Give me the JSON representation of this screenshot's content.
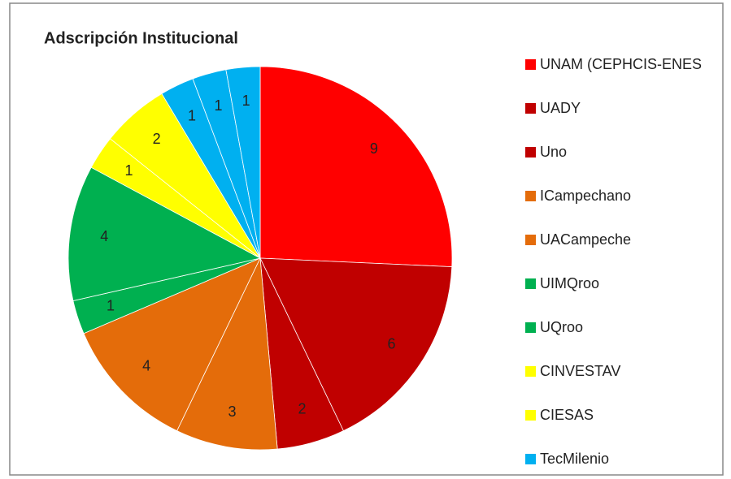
{
  "chart_data": {
    "type": "pie",
    "title": "Adscripción Institucional",
    "categories": [
      "UNAM (CEPHCIS-ENES",
      "UADY",
      "Uno",
      "ICampechano",
      "UACampeche",
      "UIMQroo",
      "UQroo",
      "CINVESTAV",
      "CIESAS",
      "TecMilenio",
      null,
      null
    ],
    "values": [
      9,
      6,
      2,
      3,
      4,
      1,
      4,
      1,
      2,
      1,
      1,
      1
    ],
    "colors": [
      "#ff0000",
      "#c00000",
      "#c00000",
      "#e46c0a",
      "#e46c0a",
      "#00b050",
      "#00b050",
      "#ffff00",
      "#ffff00",
      "#00b0f0",
      "#00b0f0",
      "#00b0f0"
    ],
    "legend": "right"
  }
}
